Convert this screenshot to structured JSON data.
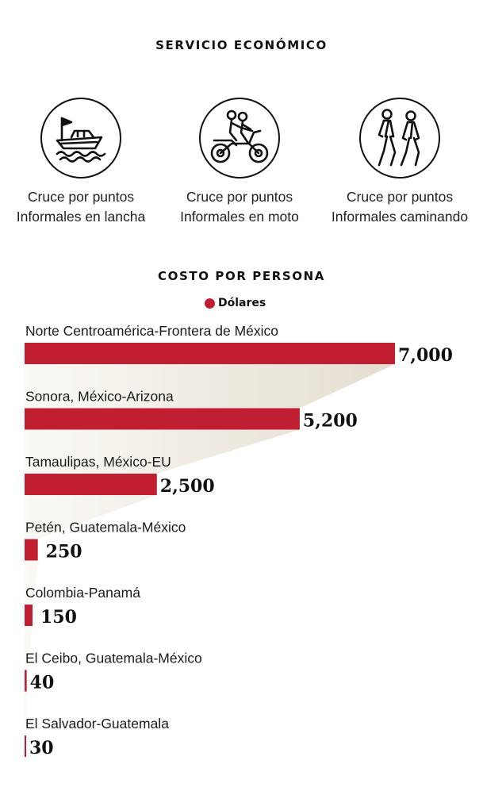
{
  "service": {
    "title": "SERVICIO ECONÓMICO",
    "modes": [
      {
        "icon": "boat-icon",
        "line1": "Cruce por puntos",
        "line2": "Informales en lancha"
      },
      {
        "icon": "motorcycle-icon",
        "line1": "Cruce por puntos",
        "line2": "Informales en moto"
      },
      {
        "icon": "walking-people-icon",
        "line1": "Cruce por puntos",
        "line2": "Informales caminando"
      }
    ]
  },
  "chart_data": {
    "type": "bar",
    "orientation": "horizontal",
    "title": "COSTO POR PERSONA",
    "legend": {
      "label": "Dólares",
      "color": "#c11f31",
      "placement": "top-center"
    },
    "categories": [
      "Norte Centroamérica-Frontera de México",
      "Sonora, México-Arizona",
      "Tamaulipas, México-EU",
      "Petén, Guatemala-México",
      "Colombia-Panamá",
      "El Ceibo, Guatemala-México",
      "El Salvador-Guatemala"
    ],
    "values": [
      7000,
      5200,
      2500,
      250,
      150,
      40,
      30
    ],
    "value_labels": [
      "7,000",
      "5,200",
      "2,500",
      "250",
      "150",
      "40",
      "30"
    ],
    "xlim": [
      0,
      7000
    ],
    "grid": false
  },
  "colors": {
    "bar": "#c11f31",
    "shade": "#e4ddd0"
  }
}
